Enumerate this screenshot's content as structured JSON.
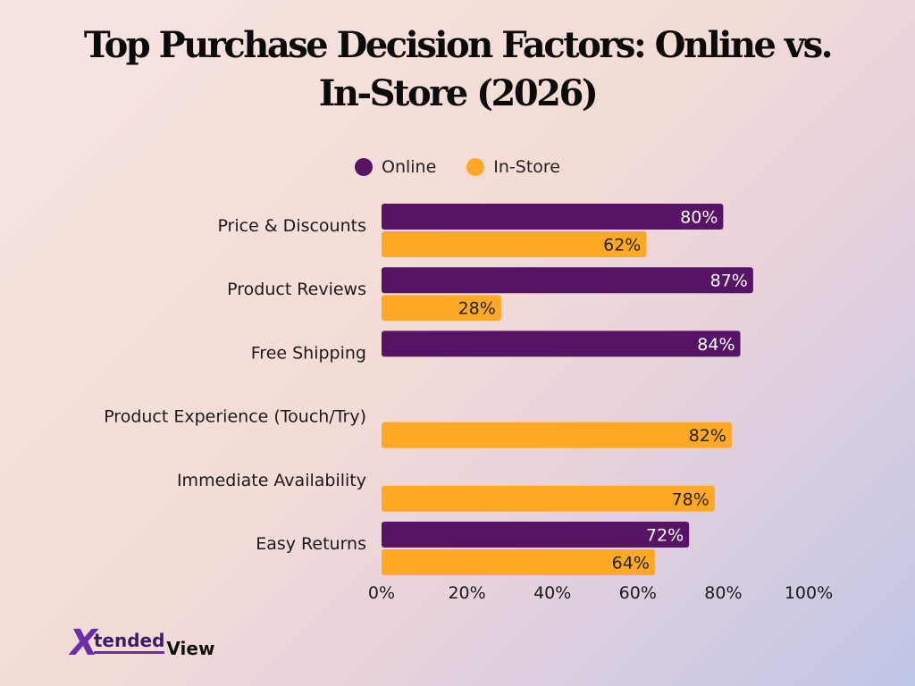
{
  "title": "Top Purchase Decision Factors: Online vs. In-Store (2026)",
  "logo": {
    "mark": "X",
    "part1": "tended",
    "part2": "View"
  },
  "colors": {
    "online": "#571466",
    "instore": "#ffa826",
    "label": "#1a1a1a",
    "barText": "#ffffff",
    "barTextInstore": "#222222"
  },
  "chart_data": {
    "type": "bar",
    "orientation": "horizontal",
    "title": "Top Purchase Decision Factors: Online vs. In-Store (2026)",
    "categories": [
      "Price & Discounts",
      "Product Reviews",
      "Free Shipping",
      "Product Experience (Touch/Try)",
      "Immediate Availability",
      "Easy Returns"
    ],
    "series": [
      {
        "name": "Online",
        "values": [
          80,
          87,
          84,
          null,
          null,
          72
        ]
      },
      {
        "name": "In-Store",
        "values": [
          62,
          28,
          null,
          82,
          78,
          64
        ]
      }
    ],
    "xlim": [
      0,
      100
    ],
    "xticks": [
      "0%",
      "20%",
      "40%",
      "60%",
      "80%",
      "100%"
    ],
    "value_suffix": "%",
    "legend": "top-center",
    "grid": false
  }
}
